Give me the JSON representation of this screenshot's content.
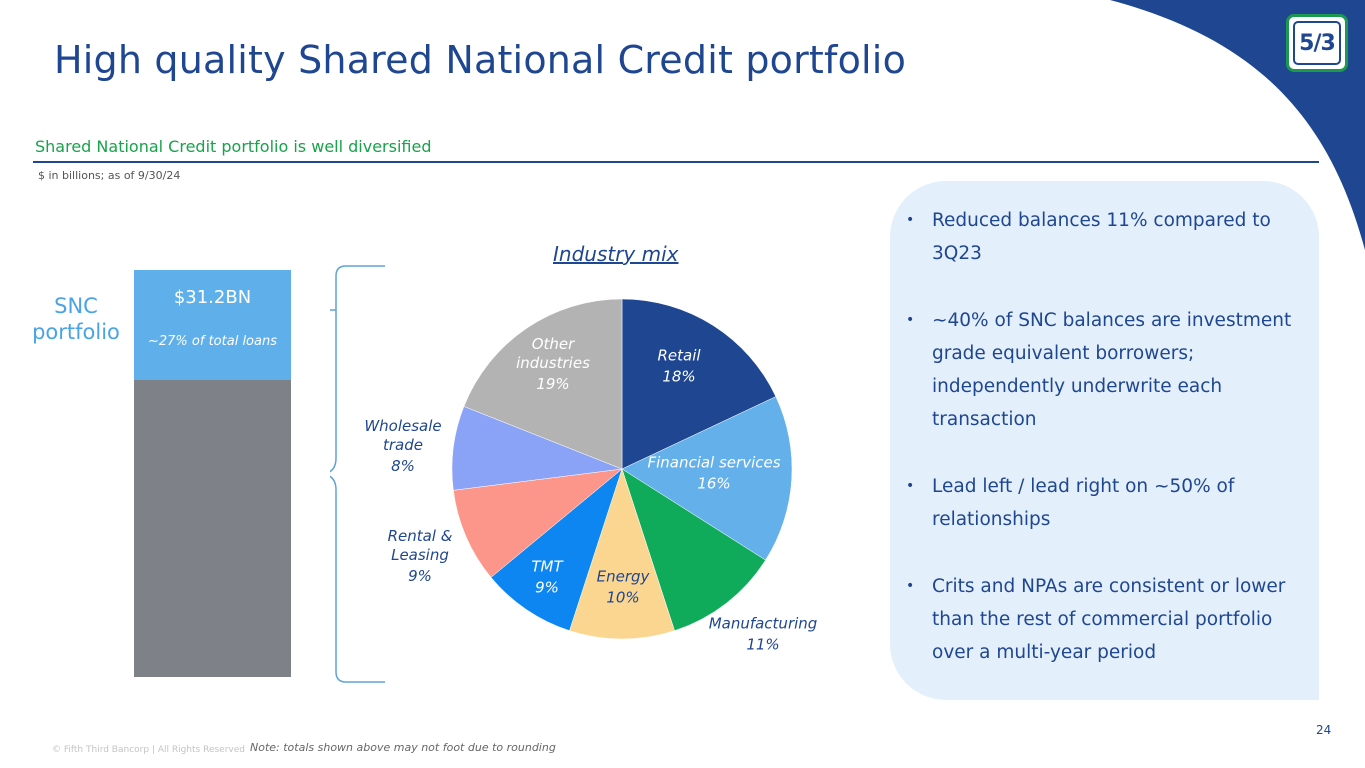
{
  "page": {
    "title": "High quality Shared National Credit portfolio",
    "subtitle": "Shared National Credit portfolio is well diversified",
    "units_note": "$ in billions; as of 9/30/24",
    "page_number": "24",
    "copyright": "© Fifth Third Bancorp | All Rights Reserved",
    "footnote": "Note: totals shown above may not foot due to rounding",
    "logo_text": "5/3"
  },
  "colors": {
    "title": "#1F4690",
    "subtitle": "#17a34a",
    "snc_bar": "#5fb0ea",
    "rest_bar": "#7f8188",
    "panel": "#e3effa"
  },
  "chart_data": [
    {
      "type": "bar",
      "stacked": true,
      "label": "SNC portfolio",
      "value_label": "$31.2BN",
      "share_label": "~27% of total loans",
      "segments": [
        {
          "name": "SNC portfolio",
          "value": 31.2,
          "share": 0.27,
          "color": "#5fb0ea"
        },
        {
          "name": "",
          "share": 0.73,
          "color": "#7f8188"
        }
      ]
    },
    {
      "type": "pie",
      "title": "Industry mix",
      "slices": [
        {
          "label": "Retail",
          "pct_label": "18%",
          "value": 18,
          "color": "#1F4690",
          "text_color": "#ffffff"
        },
        {
          "label": "Financial services",
          "pct_label": "16%",
          "value": 16,
          "color": "#64b0ea",
          "text_color": "#ffffff"
        },
        {
          "label": "Manufacturing",
          "pct_label": "11%",
          "value": 11,
          "color": "#0faa5a",
          "text_color": "#1F4690"
        },
        {
          "label": "Energy",
          "pct_label": "10%",
          "value": 10,
          "color": "#fbd690",
          "text_color": "#1F4690"
        },
        {
          "label": "TMT",
          "pct_label": "9%",
          "value": 9,
          "color": "#0d86f2",
          "text_color": "#ffffff"
        },
        {
          "label": "Rental & Leasing",
          "pct_label": "9%",
          "value": 9,
          "color": "#fd968a",
          "text_color": "#1F4690"
        },
        {
          "label": "Wholesale trade",
          "pct_label": "8%",
          "value": 8,
          "color": "#8aa3f7",
          "text_color": "#1F4690"
        },
        {
          "label": "Other industries",
          "pct_label": "19%",
          "value": 19,
          "color": "#b3b3b3",
          "text_color": "#ffffff"
        }
      ]
    }
  ],
  "bullets": [
    "Reduced balances 11% compared to 3Q23",
    "~40% of SNC balances are investment grade equivalent borrowers; independently underwrite each transaction",
    "Lead left / lead right on ~50% of relationships",
    "Crits and NPAs are consistent or lower than the rest of commercial portfolio over a multi-year period"
  ]
}
